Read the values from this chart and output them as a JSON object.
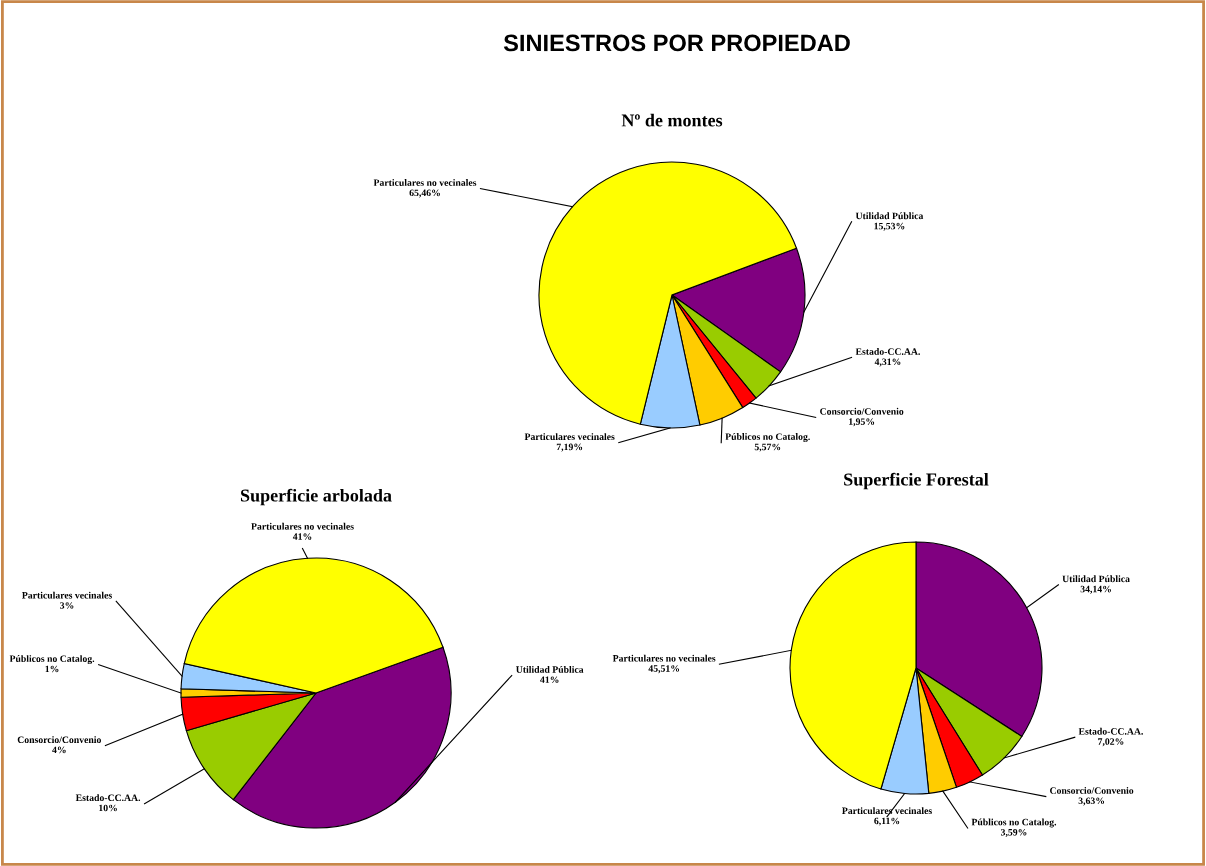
{
  "chart_data": [
    {
      "type": "pie",
      "title": "SINIESTROS POR PROPIEDAD",
      "subtitle": "Nº de montes",
      "categories": [
        "Utilidad Pública",
        "Estado-CC.AA.",
        "Consorcio/Convenio",
        "Públicos no Catalog.",
        "Particulares vecinales",
        "Particulares no vecinales"
      ],
      "values": [
        15.53,
        4.31,
        1.95,
        5.57,
        7.19,
        65.46
      ],
      "value_labels": [
        "15,53%",
        "4,31%",
        "1,95%",
        "5,57%",
        "7,19%",
        "65,46%"
      ],
      "colors": [
        "#800080",
        "#99cc00",
        "#ff0000",
        "#ffcc00",
        "#99ccff",
        "#ffff00"
      ]
    },
    {
      "type": "pie",
      "title": "Superficie arbolada",
      "categories": [
        "Utilidad Pública",
        "Estado-CC.AA.",
        "Consorcio/Convenio",
        "Públicos no Catalog.",
        "Particulares vecinales",
        "Particulares no vecinales"
      ],
      "values": [
        41,
        10,
        4,
        1,
        3,
        41
      ],
      "value_labels": [
        "41%",
        "10%",
        "4%",
        "1%",
        "3%",
        "41%"
      ],
      "colors": [
        "#800080",
        "#99cc00",
        "#ff0000",
        "#ffcc00",
        "#99ccff",
        "#ffff00"
      ]
    },
    {
      "type": "pie",
      "title": "Superficie Forestal",
      "categories": [
        "Utilidad Pública",
        "Estado-CC.AA.",
        "Consorcio/Convenio",
        "Públicos no Catalog.",
        "Particulares vecinales",
        "Particulares no vecinales"
      ],
      "values": [
        34.14,
        7.02,
        3.63,
        3.59,
        6.11,
        45.51
      ],
      "value_labels": [
        "34,14%",
        "7,02%",
        "3,63%",
        "3,59%",
        "6,11%",
        "45,51%"
      ],
      "colors": [
        "#800080",
        "#99cc00",
        "#ff0000",
        "#ffcc00",
        "#99ccff",
        "#ffff00"
      ]
    }
  ]
}
